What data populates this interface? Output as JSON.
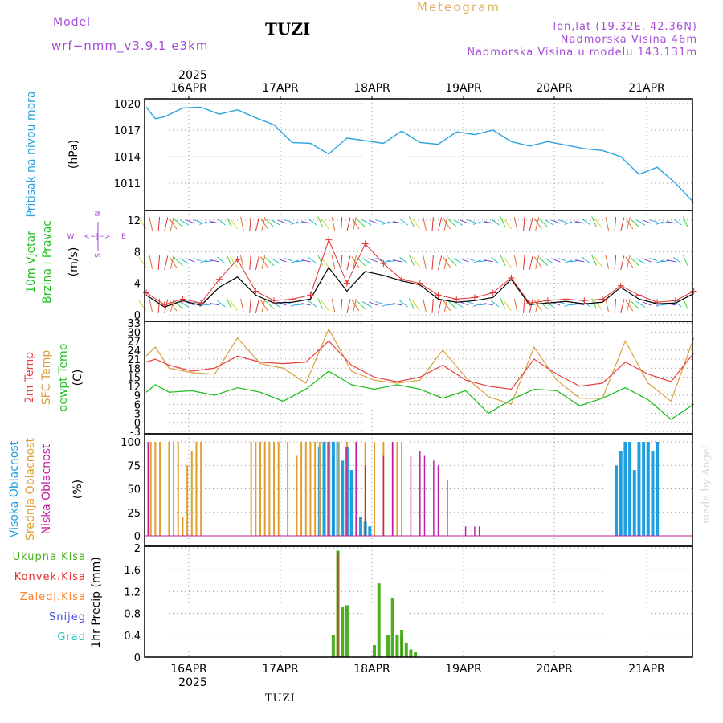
{
  "header": {
    "model_label": "Model",
    "model_name": "wrf−nmm_v3.9.1  e3km",
    "station": "TUZI",
    "chart_kind": "Meteogram",
    "lonlat": "lon,lat (19.32E, 42.36N)",
    "altitude": "Nadmorska Visina 46m",
    "model_altitude": "Nadmorska Visina u modelu 143.131m",
    "footer_station": "TUZI",
    "watermark": "made by Angel"
  },
  "colors": {
    "pressure": "#2aa3e0",
    "wind_speed": "#000000",
    "gust": "#e33333",
    "temp2m": "#e84040",
    "sfc_temp": "#d8a040",
    "dewpt": "#22c022",
    "high_cloud": "#1e9fe0",
    "mid_cloud": "#e0a030",
    "low_cloud": "#c020a0",
    "precip_total": "#4caf20",
    "precip_conv": "#e83030",
    "label_purple": "#a64dd6"
  },
  "chart_data": [
    {
      "type": "line",
      "panel": "pressure",
      "ylabel": "Pritisak na nivou mora",
      "unit": "(hPa)",
      "ylim": [
        1008.5,
        1021.5
      ],
      "yticks": [
        1011,
        1014,
        1017,
        1020
      ],
      "x": [
        0.0,
        0.1,
        0.2,
        0.4,
        0.6,
        0.8,
        1.0,
        1.2,
        1.4,
        1.6,
        1.8,
        2.0,
        2.2,
        2.4,
        2.6,
        2.8,
        3.0,
        3.2,
        3.4,
        3.6,
        3.8,
        4.0,
        4.2,
        4.4,
        4.6,
        4.8,
        5.0,
        5.2,
        5.4,
        5.6,
        5.8,
        6.0
      ],
      "values": [
        1019.6,
        1018.3,
        1018.5,
        1019.5,
        1019.6,
        1018.8,
        1019.3,
        1018.4,
        1017.6,
        1015.6,
        1015.5,
        1014.3,
        1016.1,
        1015.8,
        1015.5,
        1016.9,
        1015.6,
        1015.4,
        1016.8,
        1016.5,
        1017.0,
        1015.7,
        1015.2,
        1015.7,
        1015.3,
        1014.9,
        1014.7,
        1014.0,
        1012.0,
        1012.8,
        1011.0,
        1008.8
      ]
    },
    {
      "type": "line",
      "panel": "wind",
      "ylabel": "10m Vjetar",
      "ylabel2": "Brzina i Pravac",
      "unit": "(m/s)",
      "compass": {
        "n": "N",
        "s": "S",
        "w": "W",
        "e": "E",
        "arrow": "<−|−>"
      },
      "ylim": [
        0,
        13.7
      ],
      "yticks": [
        0,
        4,
        8,
        12
      ],
      "x": [
        0.0,
        0.2,
        0.4,
        0.6,
        0.8,
        1.0,
        1.2,
        1.4,
        1.6,
        1.8,
        2.0,
        2.2,
        2.4,
        2.6,
        2.8,
        3.0,
        3.2,
        3.4,
        3.6,
        3.8,
        4.0,
        4.2,
        4.4,
        4.6,
        4.8,
        5.0,
        5.2,
        5.4,
        5.6,
        5.8,
        6.0
      ],
      "series": [
        {
          "name": "speed",
          "values": [
            2.5,
            1.0,
            1.8,
            1.2,
            3.5,
            4.8,
            2.5,
            1.5,
            1.6,
            2.0,
            6.0,
            3.0,
            5.5,
            5.0,
            4.3,
            3.8,
            2.0,
            1.6,
            1.8,
            2.2,
            4.5,
            1.3,
            1.5,
            1.7,
            1.4,
            1.6,
            3.5,
            2.0,
            1.4,
            1.5,
            2.7
          ]
        },
        {
          "name": "gust",
          "values": [
            2.8,
            1.3,
            2.0,
            1.5,
            4.5,
            7.0,
            3.0,
            1.8,
            2.0,
            2.5,
            9.5,
            4.0,
            9.0,
            6.5,
            4.5,
            4.0,
            2.5,
            2.0,
            2.2,
            2.8,
            4.7,
            1.5,
            1.8,
            2.0,
            1.8,
            2.0,
            3.7,
            2.5,
            1.6,
            1.8,
            3.0
          ]
        }
      ]
    },
    {
      "type": "line",
      "panel": "temperature",
      "ylabel": "2m Temp",
      "ylabel2": "SFC Temp",
      "ylabel3": "dewpt Temp",
      "unit": "(C)",
      "ylim": [
        -3,
        33
      ],
      "yticks": [
        -3,
        0,
        3,
        6,
        9,
        12,
        15,
        18,
        21,
        24,
        27,
        30,
        33
      ],
      "x": [
        0.0,
        0.1,
        0.25,
        0.5,
        0.75,
        1.0,
        1.25,
        1.5,
        1.75,
        2.0,
        2.25,
        2.5,
        2.75,
        3.0,
        3.25,
        3.5,
        3.75,
        4.0,
        4.25,
        4.5,
        4.75,
        5.0,
        5.25,
        5.5,
        5.75,
        6.0
      ],
      "series": [
        {
          "name": "2m Temp",
          "values": [
            20,
            21,
            19,
            17,
            18,
            22,
            20,
            19.5,
            20,
            27,
            19,
            15,
            13.5,
            15,
            19,
            14,
            12,
            11,
            21,
            16,
            12,
            13,
            20,
            16,
            13.5,
            23
          ]
        },
        {
          "name": "SFC Temp",
          "values": [
            22,
            25,
            18,
            16.5,
            16,
            28,
            19.5,
            18,
            13,
            31,
            17,
            14,
            13,
            14,
            24,
            15,
            8.5,
            6,
            25,
            14,
            8,
            8,
            27,
            13,
            7,
            28
          ]
        },
        {
          "name": "dewpt Temp",
          "values": [
            10,
            12.5,
            10,
            10.5,
            9,
            11.5,
            10,
            7,
            11,
            17,
            12.5,
            11,
            12.5,
            11,
            8,
            10.5,
            3,
            7.5,
            11,
            10.5,
            5.5,
            8,
            11.5,
            7.5,
            1,
            6
          ]
        }
      ]
    },
    {
      "type": "bar",
      "panel": "cloud",
      "ylabel": "Visoka Oblacnost",
      "ylabel2": "Srednja Oblacnost",
      "ylabel3": "Niska Oblacnost",
      "unit": "(%)",
      "ylim": [
        0,
        100
      ],
      "yticks": [
        0,
        25,
        50,
        75,
        100
      ],
      "series": [
        {
          "name": "Visoka Oblacnost",
          "x": [
            1.9,
            1.95,
            2.0,
            2.05,
            2.1,
            2.15,
            2.2,
            2.25,
            2.35,
            2.4,
            2.45,
            5.15,
            5.2,
            5.25,
            5.3,
            5.35,
            5.4,
            5.45,
            5.5,
            5.55,
            5.6
          ],
          "values": [
            95,
            100,
            100,
            100,
            100,
            80,
            95,
            70,
            20,
            15,
            10,
            75,
            90,
            100,
            100,
            70,
            100,
            100,
            100,
            90,
            100
          ]
        },
        {
          "name": "Srednja Oblacnost",
          "x": [
            0.05,
            0.1,
            0.15,
            0.25,
            0.3,
            0.35,
            0.4,
            0.45,
            0.5,
            0.55,
            0.6,
            1.15,
            1.2,
            1.25,
            1.3,
            1.35,
            1.4,
            1.45,
            1.55,
            1.65,
            1.7,
            1.75,
            1.8,
            1.85,
            1.9,
            2.0,
            2.1,
            2.2,
            2.3,
            2.4,
            2.5,
            2.6,
            2.7,
            2.75,
            2.8
          ],
          "values": [
            100,
            100,
            100,
            100,
            100,
            100,
            20,
            75,
            90,
            100,
            100,
            100,
            100,
            100,
            100,
            100,
            100,
            100,
            100,
            85,
            100,
            100,
            100,
            100,
            100,
            100,
            100,
            100,
            100,
            100,
            100,
            100,
            100,
            100,
            100
          ]
        },
        {
          "name": "Niska Oblacnost",
          "x": [
            0.02,
            2.0,
            2.05,
            2.2,
            2.3,
            2.4,
            2.6,
            2.7,
            2.9,
            3.0,
            3.05,
            3.15,
            3.2,
            3.3,
            3.5,
            3.6,
            3.65
          ],
          "values": [
            100,
            100,
            85,
            95,
            100,
            75,
            85,
            100,
            85,
            90,
            85,
            80,
            75,
            60,
            10,
            10,
            10
          ]
        }
      ]
    },
    {
      "type": "bar",
      "panel": "precip",
      "ylabel": "1hr Precip",
      "unit": "(mm)",
      "legend": [
        "Ukupna Kisa",
        "Konvek.Kisa",
        "Zaledj.Kisa",
        "Snijeg",
        "Grad"
      ],
      "legend_colors": [
        "#4caf20",
        "#e83030",
        "#ff7f27",
        "#4a4ae0",
        "#20c0c0"
      ],
      "ylim": [
        0,
        2.05
      ],
      "yticks": [
        0,
        0.4,
        0.8,
        1.2,
        1.6,
        2
      ],
      "series": [
        {
          "name": "Ukupna Kisa",
          "x": [
            2.05,
            2.1,
            2.15,
            2.2,
            2.5,
            2.55,
            2.65,
            2.7,
            2.75,
            2.8,
            2.85,
            2.9,
            2.95
          ],
          "values": [
            0.4,
            1.95,
            0.92,
            0.95,
            0.22,
            1.35,
            0.4,
            1.08,
            0.4,
            0.5,
            0.25,
            0.14,
            0.1
          ]
        },
        {
          "name": "Konvek.Kisa",
          "x": [
            2.1,
            2.8
          ],
          "values": [
            1.9,
            0.35
          ]
        }
      ]
    }
  ],
  "axis": {
    "days": [
      "16APR",
      "17APR",
      "18APR",
      "19APR",
      "20APR",
      "21APR"
    ],
    "year": "2025"
  }
}
